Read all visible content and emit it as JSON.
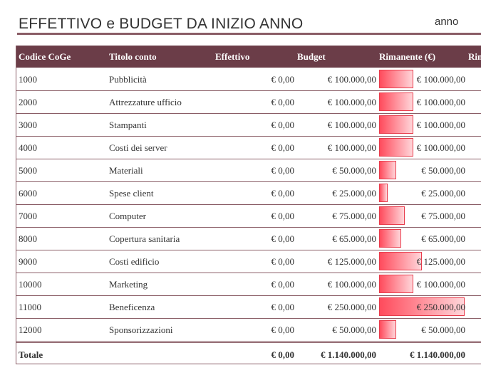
{
  "header": {
    "title": "EFFETTIVO e BUDGET DA INIZIO ANNO",
    "year_label": "anno"
  },
  "columns": {
    "code": "Codice CoGe",
    "account": "Titolo conto",
    "actual": "Effettivo",
    "budget": "Budget",
    "remaining": "Rimanente (€)",
    "remaining_pct": "Rim"
  },
  "rows": [
    {
      "code": "1000",
      "account": "Pubblicità",
      "actual": "€ 0,00",
      "budget": "€ 100.000,00",
      "remaining": "€ 100.000,00",
      "remaining_value": 100000
    },
    {
      "code": "2000",
      "account": "Attrezzature ufficio",
      "actual": "€ 0,00",
      "budget": "€ 100.000,00",
      "remaining": "€ 100.000,00",
      "remaining_value": 100000
    },
    {
      "code": "3000",
      "account": "Stampanti",
      "actual": "€ 0,00",
      "budget": "€ 100.000,00",
      "remaining": "€ 100.000,00",
      "remaining_value": 100000
    },
    {
      "code": "4000",
      "account": "Costi dei server",
      "actual": "€ 0,00",
      "budget": "€ 100.000,00",
      "remaining": "€ 100.000,00",
      "remaining_value": 100000
    },
    {
      "code": "5000",
      "account": "Materiali",
      "actual": "€ 0,00",
      "budget": "€ 50.000,00",
      "remaining": "€ 50.000,00",
      "remaining_value": 50000
    },
    {
      "code": "6000",
      "account": "Spese client",
      "actual": "€ 0,00",
      "budget": "€ 25.000,00",
      "remaining": "€ 25.000,00",
      "remaining_value": 25000
    },
    {
      "code": "7000",
      "account": "Computer",
      "actual": "€ 0,00",
      "budget": "€ 75.000,00",
      "remaining": "€ 75.000,00",
      "remaining_value": 75000
    },
    {
      "code": "8000",
      "account": "Copertura sanitaria",
      "actual": "€ 0,00",
      "budget": "€ 65.000,00",
      "remaining": "€ 65.000,00",
      "remaining_value": 65000
    },
    {
      "code": "9000",
      "account": "Costi edificio",
      "actual": "€ 0,00",
      "budget": "€ 125.000,00",
      "remaining": "€ 125.000,00",
      "remaining_value": 125000
    },
    {
      "code": "10000",
      "account": "Marketing",
      "actual": "€ 0,00",
      "budget": "€ 100.000,00",
      "remaining": "€ 100.000,00",
      "remaining_value": 100000
    },
    {
      "code": "11000",
      "account": "Beneficenza",
      "actual": "€ 0,00",
      "budget": "€ 250.000,00",
      "remaining": "€ 250.000,00",
      "remaining_value": 250000
    },
    {
      "code": "12000",
      "account": "Sponsorizzazioni",
      "actual": "€ 0,00",
      "budget": "€ 50.000,00",
      "remaining": "€ 50.000,00",
      "remaining_value": 50000
    }
  ],
  "total": {
    "label": "Totale",
    "actual": "€ 0,00",
    "budget": "€ 1.140.000,00",
    "remaining": "€ 1.140.000,00"
  },
  "colors": {
    "header_bg": "#6b3d48",
    "rule": "#8a5d66",
    "bar": "#ff4b5c"
  }
}
